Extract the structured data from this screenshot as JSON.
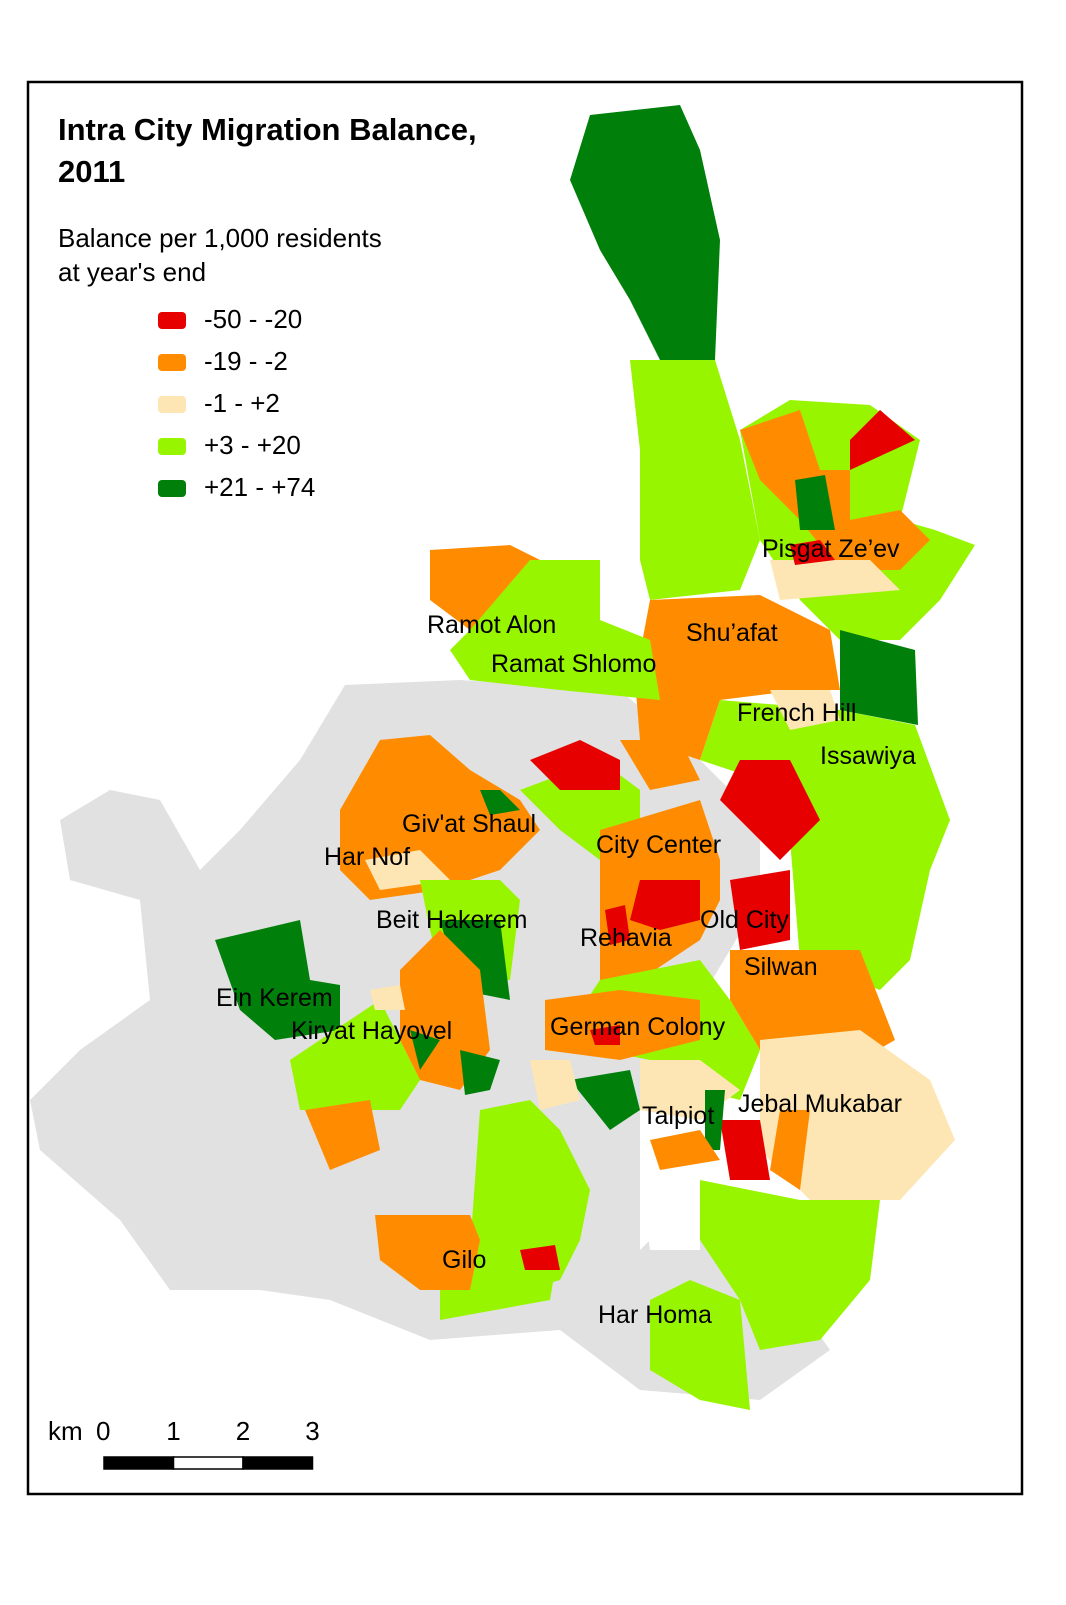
{
  "title": [
    "Intra City Migration Balance,",
    "2011"
  ],
  "legend": {
    "title": [
      "Balance per 1,000 residents",
      "at year's end"
    ],
    "items": [
      {
        "label": "-50 - -20",
        "color": "#e60000"
      },
      {
        "label": "-19 - -2",
        "color": "#ff8c00"
      },
      {
        "label": "-1 - +2",
        "color": "#fde6b4"
      },
      {
        "label": "+3 - +20",
        "color": "#98f500"
      },
      {
        "label": "+21 - +74",
        "color": "#00800a"
      }
    ]
  },
  "places": [
    "Pisgat Ze’ev",
    "Ramot Alon",
    "Shu’afat",
    "Ramat Shlomo",
    "French Hill",
    "Issawiya",
    "Giv'at Shaul",
    "City Center",
    "Har Nof",
    "Beit Hakerem",
    "Old City",
    "Rehavia",
    "Silwan",
    "Ein Kerem",
    "German Colony",
    "Kiryat Hayovel",
    "Jebal Mukabar",
    "Talpiot",
    "Gilo",
    "Har Homa"
  ],
  "scale_bar": {
    "unit": "km",
    "ticks": [
      0,
      1,
      2,
      3
    ]
  }
}
